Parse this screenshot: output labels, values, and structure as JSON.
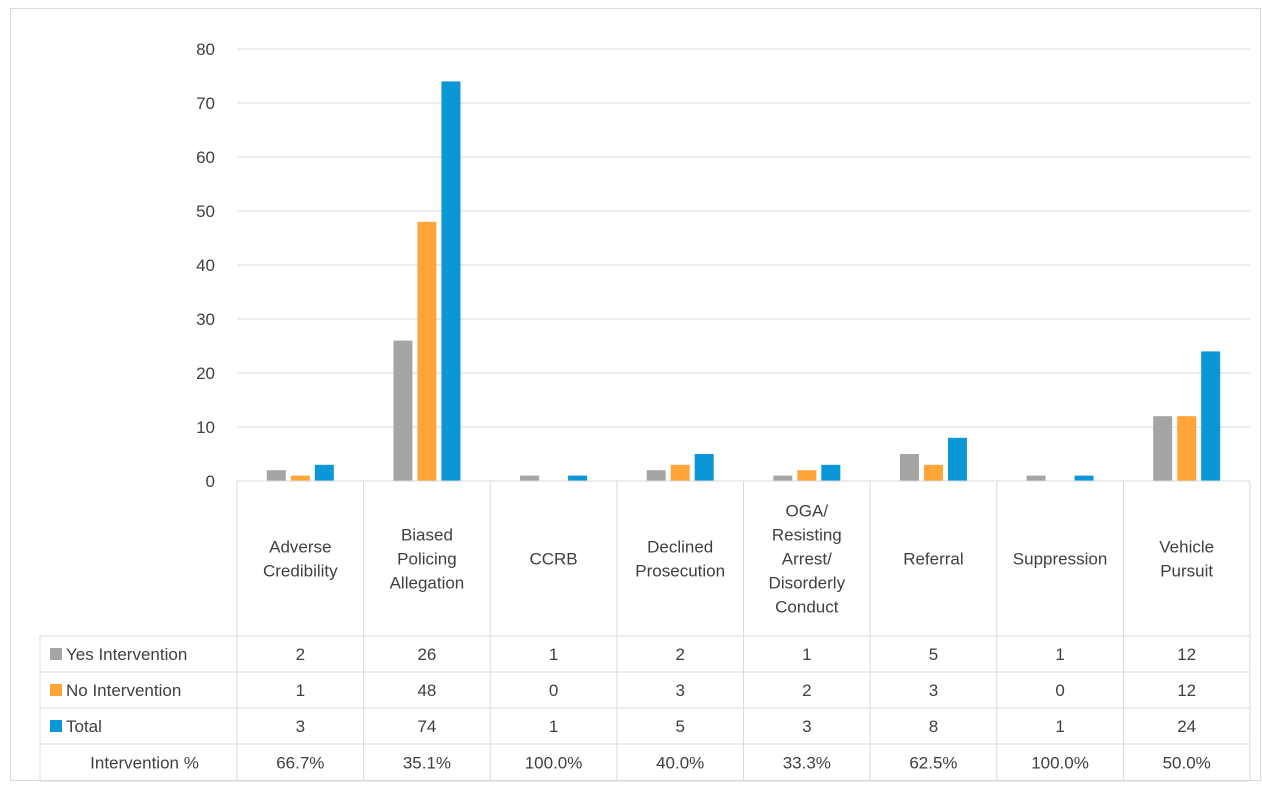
{
  "chart_data": {
    "type": "bar",
    "categories": [
      [
        "Adverse",
        "Credibility"
      ],
      [
        "Biased",
        "Policing",
        "Allegation"
      ],
      [
        "CCRB"
      ],
      [
        "Declined",
        "Prosecution"
      ],
      [
        "OGA/",
        "Resisting",
        "Arrest/",
        "Disorderly",
        "Conduct"
      ],
      [
        "Referral"
      ],
      [
        "Suppression"
      ],
      [
        "Vehicle",
        "Pursuit"
      ]
    ],
    "series": [
      {
        "name": "Yes Intervention",
        "color": "#a5a5a5",
        "values": [
          2,
          26,
          1,
          2,
          1,
          5,
          1,
          12
        ]
      },
      {
        "name": "No Intervention",
        "color": "#ffa53a",
        "values": [
          1,
          48,
          0,
          3,
          2,
          3,
          0,
          12
        ]
      },
      {
        "name": "Total",
        "color": "#0b96d8",
        "values": [
          3,
          74,
          1,
          5,
          3,
          8,
          1,
          24
        ]
      }
    ],
    "table_rows": [
      {
        "label": "Yes Intervention",
        "legend": true,
        "values": [
          "2",
          "26",
          "1",
          "2",
          "1",
          "5",
          "1",
          "12"
        ]
      },
      {
        "label": "No Intervention",
        "legend": true,
        "values": [
          "1",
          "48",
          "0",
          "3",
          "2",
          "3",
          "0",
          "12"
        ]
      },
      {
        "label": "Total",
        "legend": true,
        "values": [
          "3",
          "74",
          "1",
          "5",
          "3",
          "8",
          "1",
          "24"
        ]
      },
      {
        "label": "Intervention %",
        "legend": false,
        "values": [
          "66.7%",
          "35.1%",
          "100.0%",
          "40.0%",
          "33.3%",
          "62.5%",
          "100.0%",
          "50.0%"
        ]
      }
    ],
    "yticks": [
      "0",
      "10",
      "20",
      "30",
      "40",
      "50",
      "60",
      "70",
      "80"
    ],
    "ylim": [
      0,
      80
    ],
    "grid": true,
    "legend": "data-table"
  }
}
